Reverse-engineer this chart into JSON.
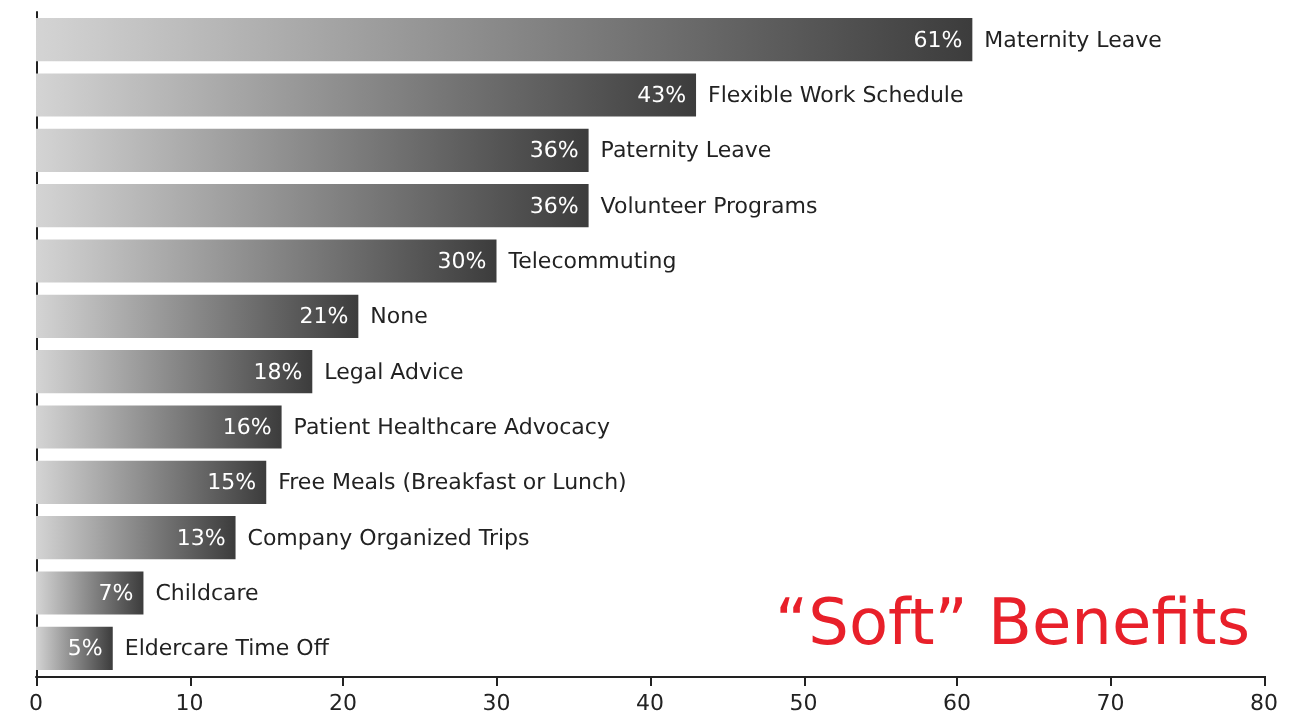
{
  "chart_data": {
    "type": "bar",
    "orientation": "horizontal",
    "title": "“Soft” Benefits",
    "categories": [
      "Maternity Leave",
      "Flexible Work Schedule",
      "Paternity Leave",
      "Volunteer Programs",
      "Telecommuting",
      "None",
      "Legal Advice",
      "Patient Healthcare Advocacy",
      "Free Meals (Breakfast or Lunch)",
      "Company Organized Trips",
      "Childcare",
      "Eldercare Time Off"
    ],
    "values": [
      61,
      43,
      36,
      36,
      30,
      21,
      18,
      16,
      15,
      13,
      7,
      5
    ],
    "value_labels": [
      "61%",
      "43%",
      "36%",
      "36%",
      "30%",
      "21%",
      "18%",
      "16%",
      "15%",
      "13%",
      "7%",
      "5%"
    ],
    "color": "#3c3c3c",
    "xlim": [
      0,
      80
    ],
    "xticks": [
      0,
      10,
      20,
      30,
      40,
      50,
      60,
      70,
      80
    ],
    "grid": false,
    "tick_labels": "x"
  }
}
